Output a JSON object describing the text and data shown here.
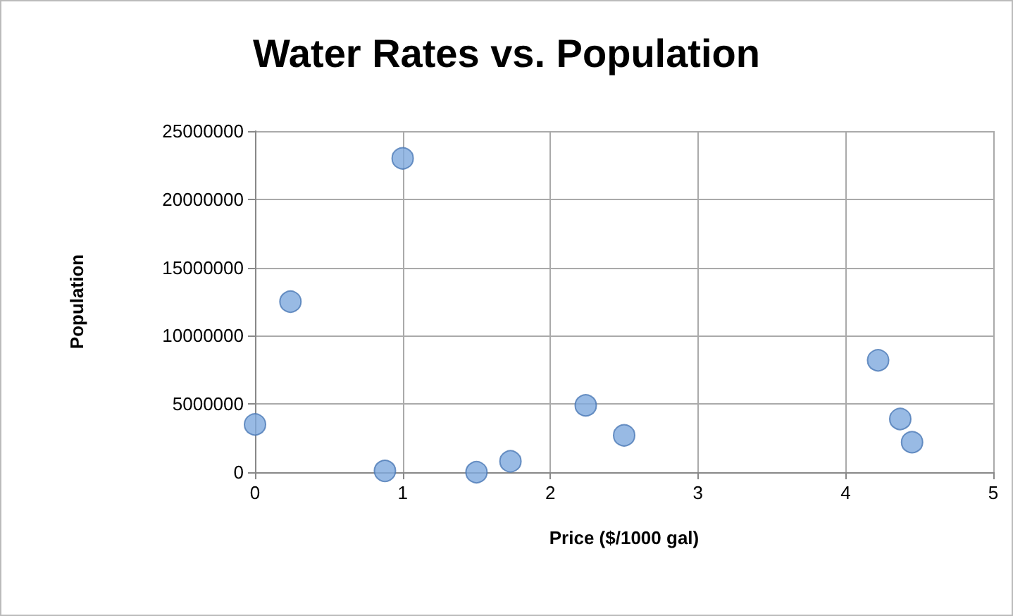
{
  "chart_data": {
    "type": "scatter",
    "title": "Water Rates vs. Population",
    "xlabel": "Price ($/1000 gal)",
    "ylabel": "Population",
    "x": [
      0,
      0.24,
      1.0,
      0.88,
      1.5,
      1.73,
      2.24,
      2.5,
      4.22,
      4.37,
      4.45
    ],
    "values": [
      3500000,
      12500000,
      23000000,
      100000,
      0,
      800000,
      4900000,
      2700000,
      8200000,
      3900000,
      2200000
    ],
    "color": "#7ea9dd",
    "marker": "circle",
    "xlim": [
      0,
      5
    ],
    "xticks": [
      0,
      1,
      2,
      3,
      4,
      5
    ],
    "ylim": [
      0,
      25000000
    ],
    "yticks": [
      0,
      5000000,
      10000000,
      15000000,
      20000000,
      25000000
    ],
    "grid": true
  }
}
